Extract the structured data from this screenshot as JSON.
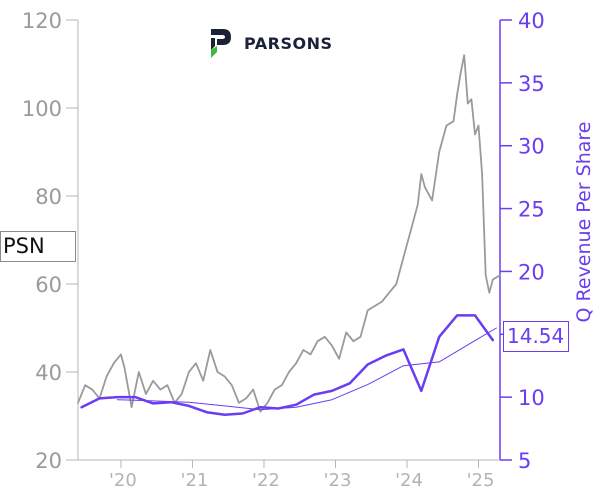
{
  "chart_data": {
    "type": "line",
    "ticker": "PSN",
    "company_logo_text": "PARSONS",
    "left_axis": {
      "ticks": [
        20,
        40,
        60,
        80,
        100,
        120
      ],
      "range": [
        20,
        120
      ]
    },
    "right_axis": {
      "label": "Q Revenue Per Share",
      "ticks": [
        5,
        10,
        15,
        20,
        25,
        30,
        35,
        40
      ],
      "range": [
        5,
        40
      ]
    },
    "x_axis": {
      "range": [
        2019.4,
        2025.3
      ],
      "ticks": [
        {
          "label": "'20",
          "value": 2020.0
        },
        {
          "label": "'21",
          "value": 2021.0
        },
        {
          "label": "'22",
          "value": 2022.0
        },
        {
          "label": "'23",
          "value": 2023.0
        },
        {
          "label": "'24",
          "value": 2024.0
        },
        {
          "label": "'25",
          "value": 2025.0
        }
      ]
    },
    "series": [
      {
        "name": "PSN",
        "axis": "left",
        "color": "#9a9a9a",
        "x": [
          2019.4,
          2019.5,
          2019.6,
          2019.7,
          2019.8,
          2019.9,
          2020.0,
          2020.05,
          2020.15,
          2020.2,
          2020.25,
          2020.35,
          2020.45,
          2020.55,
          2020.65,
          2020.75,
          2020.85,
          2020.95,
          2021.05,
          2021.15,
          2021.25,
          2021.35,
          2021.45,
          2021.55,
          2021.65,
          2021.75,
          2021.85,
          2021.95,
          2022.05,
          2022.15,
          2022.25,
          2022.35,
          2022.45,
          2022.55,
          2022.65,
          2022.75,
          2022.85,
          2022.95,
          2023.05,
          2023.15,
          2023.25,
          2023.35,
          2023.45,
          2023.55,
          2023.65,
          2023.75,
          2023.85,
          2023.95,
          2024.05,
          2024.15,
          2024.2,
          2024.25,
          2024.35,
          2024.45,
          2024.55,
          2024.65,
          2024.7,
          2024.75,
          2024.8,
          2024.85,
          2024.9,
          2024.95,
          2025.0,
          2025.05,
          2025.1,
          2025.15,
          2025.2,
          2025.3
        ],
        "y": [
          33,
          37,
          36,
          34,
          39,
          42,
          44,
          41,
          32,
          36,
          40,
          35,
          38,
          36,
          37,
          33,
          35,
          40,
          42,
          38,
          45,
          40,
          39,
          37,
          33,
          34,
          36,
          31,
          33,
          36,
          37,
          40,
          42,
          45,
          44,
          47,
          48,
          46,
          43,
          49,
          47,
          48,
          54,
          55,
          56,
          58,
          60,
          66,
          72,
          78,
          85,
          82,
          79,
          90,
          96,
          97,
          103,
          108,
          112,
          101,
          102,
          94,
          96,
          85,
          62,
          58,
          61,
          62
        ]
      },
      {
        "name": "Q Revenue Per Share",
        "axis": "right",
        "color": "#6a3df2",
        "x": [
          2019.45,
          2019.7,
          2019.95,
          2020.2,
          2020.45,
          2020.7,
          2020.95,
          2021.2,
          2021.45,
          2021.7,
          2021.95,
          2022.2,
          2022.45,
          2022.7,
          2022.95,
          2023.2,
          2023.45,
          2023.7,
          2023.95,
          2024.2,
          2024.45,
          2024.7,
          2024.95,
          2025.2
        ],
        "y": [
          9.2,
          9.9,
          10.0,
          10.0,
          9.5,
          9.6,
          9.3,
          8.8,
          8.6,
          8.7,
          9.2,
          9.1,
          9.4,
          10.2,
          10.5,
          11.1,
          12.6,
          13.3,
          13.8,
          10.5,
          14.8,
          16.5,
          16.5,
          14.54
        ]
      },
      {
        "name": "average",
        "axis": "right",
        "color": "#6a3df2",
        "x": [
          2019.95,
          2020.45,
          2020.95,
          2021.45,
          2021.95,
          2022.45,
          2022.95,
          2023.45,
          2023.95,
          2024.45,
          2024.95,
          2025.25
        ],
        "y": [
          9.8,
          9.7,
          9.6,
          9.3,
          9.0,
          9.2,
          9.8,
          11.0,
          12.5,
          12.8,
          14.5,
          15.5
        ]
      }
    ],
    "current_value": "14.54"
  }
}
